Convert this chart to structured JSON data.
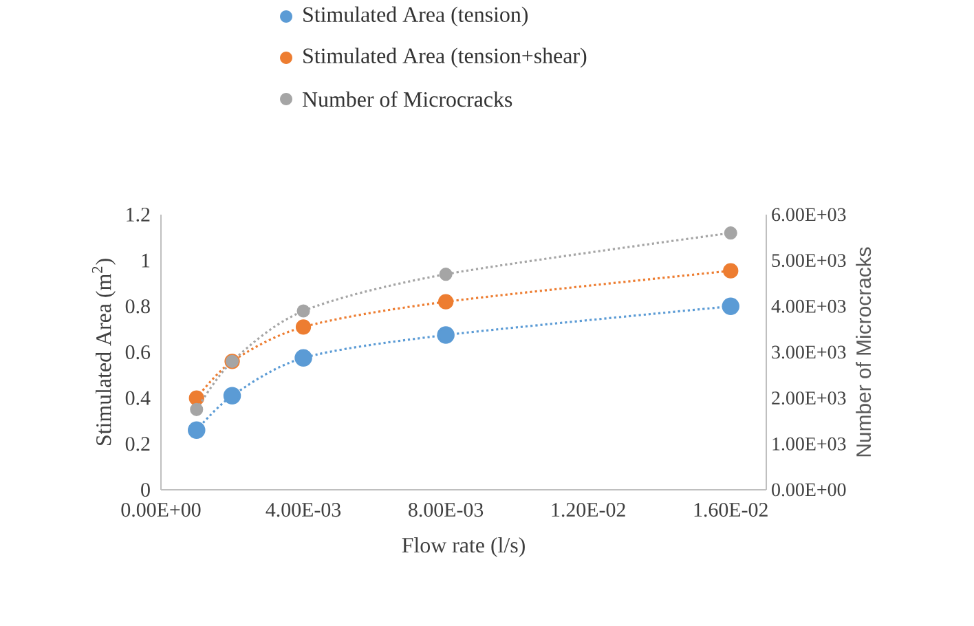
{
  "chart_data": {
    "type": "line",
    "xlabel": "Flow rate (l/s)",
    "ylabel": "Stimulated Area (m$^{2}$)",
    "y2label": "Number of Microcracks",
    "x": [
      0.001,
      0.002,
      0.004,
      0.008,
      0.016
    ],
    "series": [
      {
        "name": "Stimulated Area (tension)",
        "color": "#5b9bd5",
        "values": [
          0.26,
          0.41,
          0.575,
          0.675,
          0.8
        ]
      },
      {
        "name": "Stimulated Area (tension+shear)",
        "color": "#ed7d31",
        "values": [
          0.4,
          0.56,
          0.71,
          0.82,
          0.955
        ]
      },
      {
        "name": "Number of Microcracks",
        "color": "#a5a5a5",
        "axis": "y2",
        "values": [
          1750,
          2800,
          3900,
          4700,
          5600
        ]
      }
    ],
    "xlim": [
      0,
      0.017
    ],
    "xticks": [
      {
        "value": 0,
        "label": "0.00E+00"
      },
      {
        "value": 0.004,
        "label": "4.00E-03"
      },
      {
        "value": 0.008,
        "label": "8.00E-03"
      },
      {
        "value": 0.012,
        "label": "1.20E-02"
      },
      {
        "value": 0.016,
        "label": "1.60E-02"
      }
    ],
    "ylim": [
      0,
      1.2
    ],
    "yticks": [
      0,
      0.2,
      0.4,
      0.6,
      0.8,
      1,
      1.2
    ],
    "y2lim": [
      0,
      6000
    ],
    "y2ticks": [
      {
        "value": 0,
        "label": "0.00E+00"
      },
      {
        "value": 1000,
        "label": "1.00E+03"
      },
      {
        "value": 2000,
        "label": "2.00E+03"
      },
      {
        "value": 3000,
        "label": "3.00E+03"
      },
      {
        "value": 4000,
        "label": "4.00E+03"
      },
      {
        "value": 5000,
        "label": "5.00E+03"
      },
      {
        "value": 6000,
        "label": "6.00E+03"
      }
    ],
    "grid": false,
    "legend": "top",
    "marker": "circle",
    "line_style": "dotted"
  }
}
